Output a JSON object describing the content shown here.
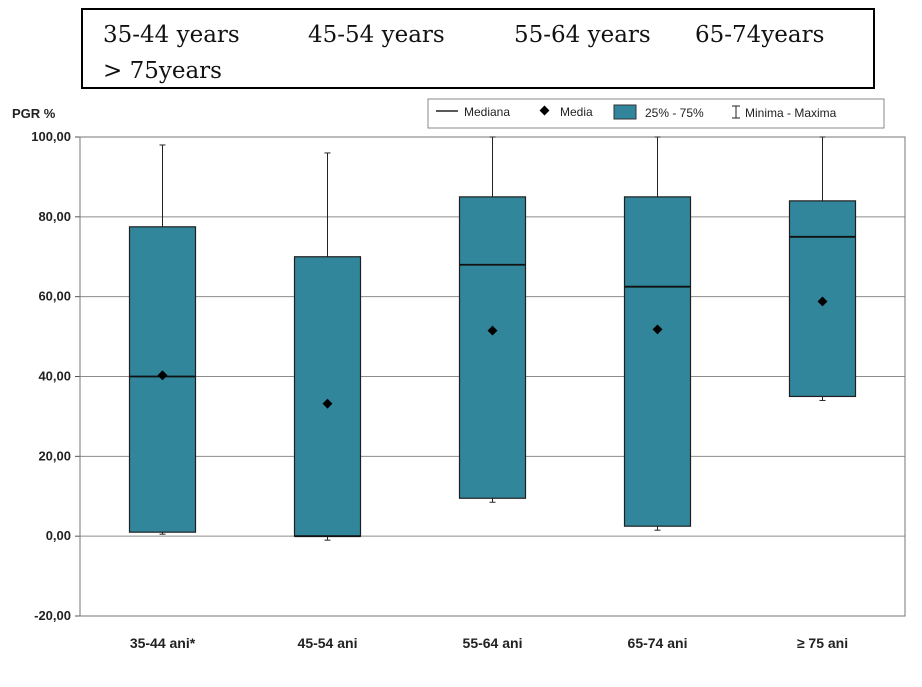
{
  "caption": {
    "items": [
      "35-44 years",
      "45-54 years",
      "55-64 years",
      "65-74years",
      "> 75years"
    ]
  },
  "chart_data": {
    "type": "boxplot",
    "ylabel": "PGR %",
    "ylim": [
      -20,
      100
    ],
    "yticks": [
      "100,00",
      "80,00",
      "60,00",
      "40,00",
      "20,00",
      "0,00",
      "-20,00"
    ],
    "ytick_values": [
      100,
      80,
      60,
      40,
      20,
      0,
      -20
    ],
    "categories": [
      "35-44 ani*",
      "45-54 ani",
      "55-64 ani",
      "65-74 ani",
      "≥ 75 ani"
    ],
    "q1": [
      1,
      0,
      9.5,
      2.5,
      35
    ],
    "q3": [
      77.5,
      70,
      85,
      85,
      84
    ],
    "median": [
      40,
      0,
      68,
      62.5,
      75
    ],
    "mean": [
      40.3,
      33.2,
      51.5,
      51.8,
      58.8
    ],
    "min": [
      0.5,
      -1,
      8.5,
      1.5,
      34
    ],
    "max": [
      98,
      96,
      100,
      100,
      100
    ],
    "grid": true,
    "legend_position": "top-right",
    "legend": [
      "Mediana",
      "Media",
      "25% - 75%",
      "Minima - Maxima"
    ],
    "box_color": "#31869b"
  }
}
